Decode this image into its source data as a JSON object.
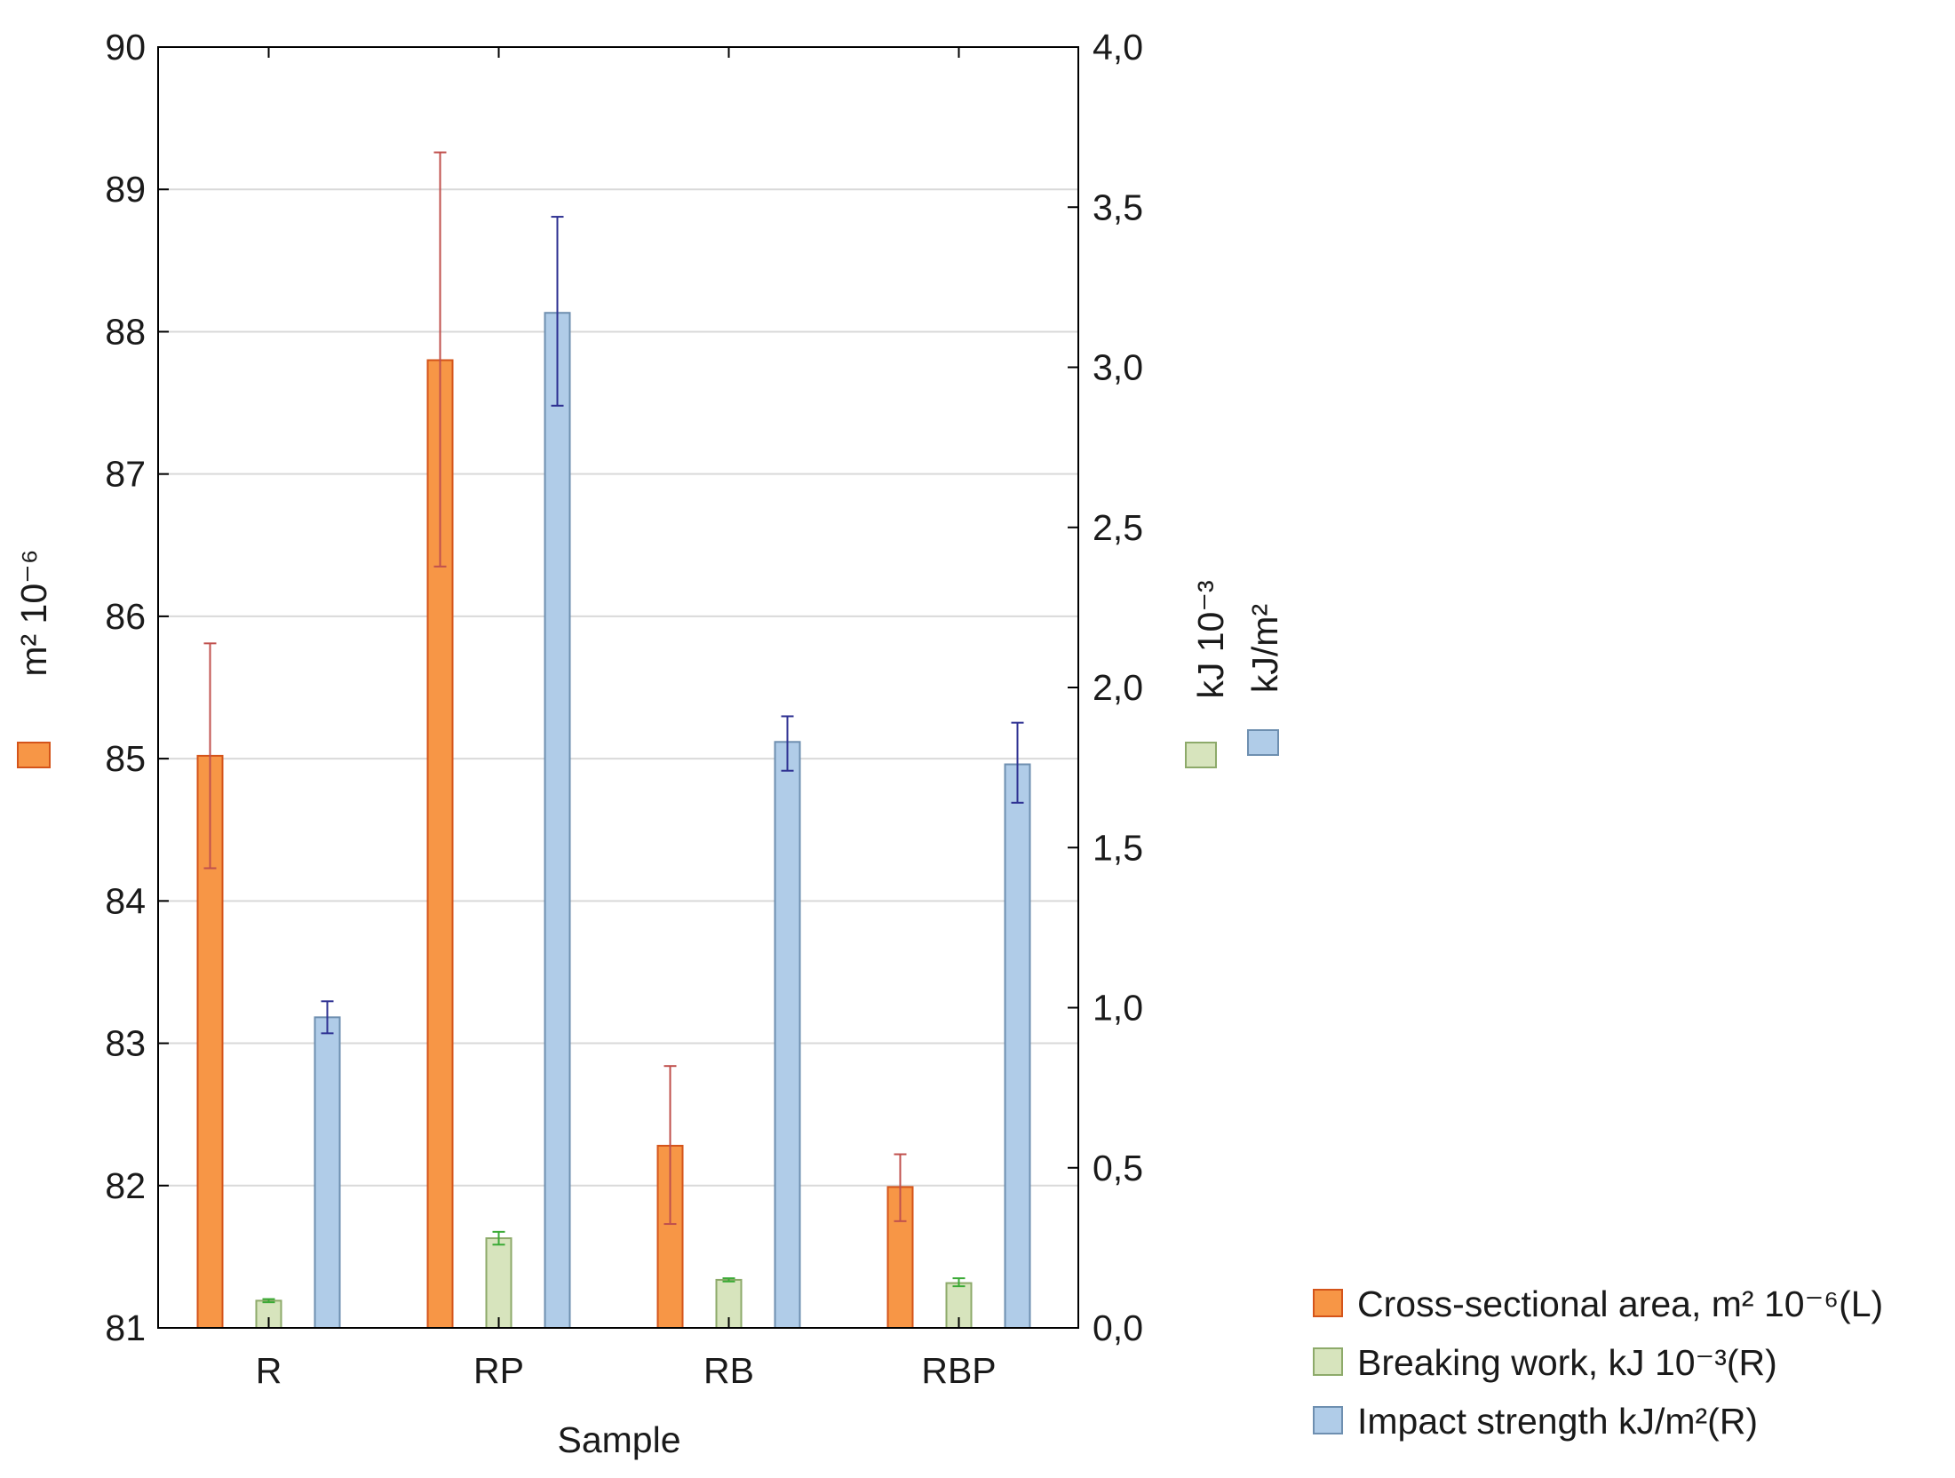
{
  "chart_data": {
    "type": "bar",
    "xlabel": "Sample",
    "categories": [
      "R",
      "RP",
      "RB",
      "RBP"
    ],
    "left_axis": {
      "title": "m² 10⁻⁶",
      "ylim": [
        81,
        90
      ],
      "ticks": [
        "81",
        "82",
        "83",
        "84",
        "85",
        "86",
        "87",
        "88",
        "89",
        "90"
      ],
      "tick_values": [
        81,
        82,
        83,
        84,
        85,
        86,
        87,
        88,
        89,
        90
      ]
    },
    "right_axis": {
      "title_1": "kJ 10⁻³",
      "title_2": "kJ/m²",
      "ylim": [
        0,
        4
      ],
      "ticks": [
        "0,0",
        "0,5",
        "1,0",
        "1,5",
        "2,0",
        "2,5",
        "3,0",
        "3,5",
        "4,0"
      ],
      "tick_values": [
        0,
        0.5,
        1,
        1.5,
        2,
        2.5,
        3,
        3.5,
        4
      ]
    },
    "grid": true,
    "series": [
      {
        "name": "Cross-sectional area, m² 10⁻⁶(L)",
        "axis": "left",
        "color": "#F79646",
        "stroke": "#D4541A",
        "err_color": "#C0504D",
        "values": [
          85.02,
          87.8,
          82.28,
          81.99
        ],
        "err_low": [
          84.23,
          86.35,
          81.73,
          81.75
        ],
        "err_high": [
          85.81,
          89.26,
          82.84,
          82.22
        ]
      },
      {
        "name": "Breaking work, kJ 10⁻³(R)",
        "axis": "right",
        "color": "#D7E4BD",
        "stroke": "#8DAA6A",
        "err_color": "#3AAA35",
        "values": [
          0.085,
          0.28,
          0.15,
          0.14
        ],
        "err_low": [
          0.08,
          0.26,
          0.145,
          0.13
        ],
        "err_high": [
          0.09,
          0.3,
          0.155,
          0.155
        ]
      },
      {
        "name": "Impact strength kJ/m²(R)",
        "axis": "right",
        "color": "#B0CCE8",
        "stroke": "#6E8FB0",
        "err_color": "#2E3192",
        "values": [
          0.97,
          3.17,
          1.83,
          1.76
        ],
        "err_low": [
          0.92,
          2.88,
          1.74,
          1.64
        ],
        "err_high": [
          1.02,
          3.47,
          1.91,
          1.89
        ]
      }
    ],
    "legend": {
      "placement": "bottom-right",
      "entries": [
        "Cross-sectional area, m² 10⁻⁶(L)",
        "Breaking work, kJ 10⁻³(R)",
        "Impact strength kJ/m²(R)"
      ]
    }
  }
}
